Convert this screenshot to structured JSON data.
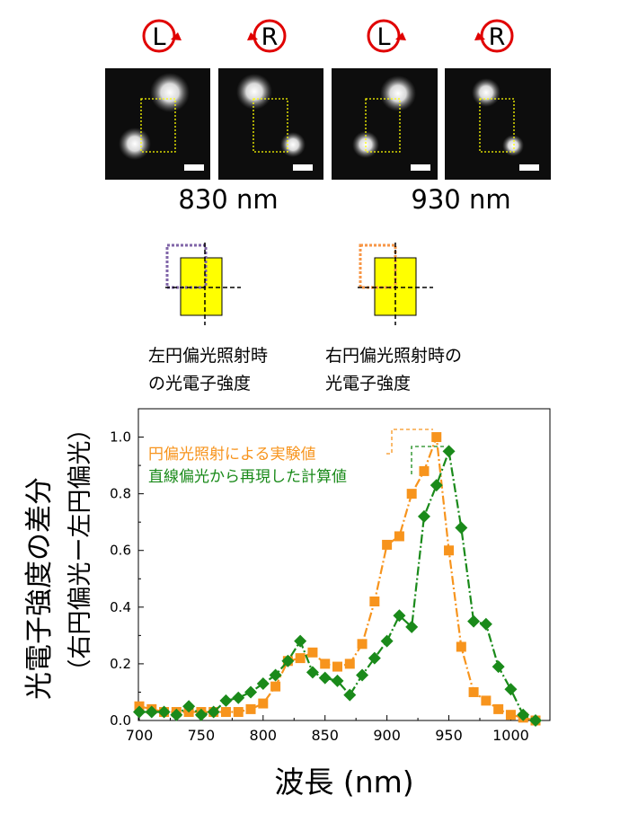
{
  "header": {
    "polarizations": [
      "L",
      "R",
      "L",
      "R"
    ],
    "wavelength_labels": [
      "830 nm",
      "930 nm"
    ]
  },
  "schematic": {
    "caption_left": [
      "左円偏光照射時",
      "の光電子強度"
    ],
    "caption_right": [
      "右円偏光照射時の",
      "光電子強度"
    ],
    "colors": {
      "rod": "#ffff00",
      "left_box": "#8065a8",
      "right_box": "#f79646"
    }
  },
  "figure_colors": {
    "experiment": "#f7941d",
    "calculation": "#1a8a1a",
    "arrow": "#e00000",
    "roi": "#ffff00"
  },
  "chart_data": {
    "type": "line",
    "ylabel_lines": [
      "光電子強度の差分",
      "（右円偏光ー左円偏光）"
    ],
    "xlabel": "波長 (nm)",
    "xlim": [
      700,
      1020
    ],
    "ylim": [
      0.0,
      1.1
    ],
    "xticks": [
      700,
      750,
      800,
      850,
      900,
      950,
      1000
    ],
    "yticks": [
      "0.0",
      "0.2",
      "0.4",
      "0.6",
      "0.8",
      "1.0"
    ],
    "series": [
      {
        "name": "円偏光照射による実験値",
        "marker": "square",
        "color": "#f7941d",
        "x": [
          700,
          710,
          720,
          730,
          740,
          750,
          760,
          770,
          780,
          790,
          800,
          810,
          820,
          830,
          840,
          850,
          860,
          870,
          880,
          890,
          900,
          910,
          920,
          930,
          940,
          950,
          960,
          970,
          980,
          990,
          1000,
          1010,
          1020
        ],
        "y": [
          0.05,
          0.04,
          0.03,
          0.03,
          0.03,
          0.03,
          0.03,
          0.03,
          0.03,
          0.04,
          0.06,
          0.12,
          0.21,
          0.22,
          0.24,
          0.2,
          0.19,
          0.2,
          0.27,
          0.42,
          0.62,
          0.65,
          0.8,
          0.88,
          1.0,
          0.6,
          0.26,
          0.1,
          0.07,
          0.04,
          0.02,
          0.01,
          0.0
        ]
      },
      {
        "name": "直線偏光から再現した計算値",
        "marker": "diamond",
        "color": "#1a8a1a",
        "x": [
          700,
          710,
          720,
          730,
          740,
          750,
          760,
          770,
          780,
          790,
          800,
          810,
          820,
          830,
          840,
          850,
          860,
          870,
          880,
          890,
          900,
          910,
          920,
          930,
          940,
          950,
          960,
          970,
          980,
          990,
          1000,
          1010,
          1020
        ],
        "y": [
          0.03,
          0.03,
          0.03,
          0.02,
          0.05,
          0.02,
          0.03,
          0.07,
          0.08,
          0.1,
          0.13,
          0.16,
          0.21,
          0.28,
          0.17,
          0.15,
          0.14,
          0.09,
          0.16,
          0.22,
          0.28,
          0.37,
          0.33,
          0.72,
          0.83,
          0.95,
          0.68,
          0.35,
          0.34,
          0.19,
          0.11,
          0.02,
          0.0
        ]
      }
    ]
  }
}
